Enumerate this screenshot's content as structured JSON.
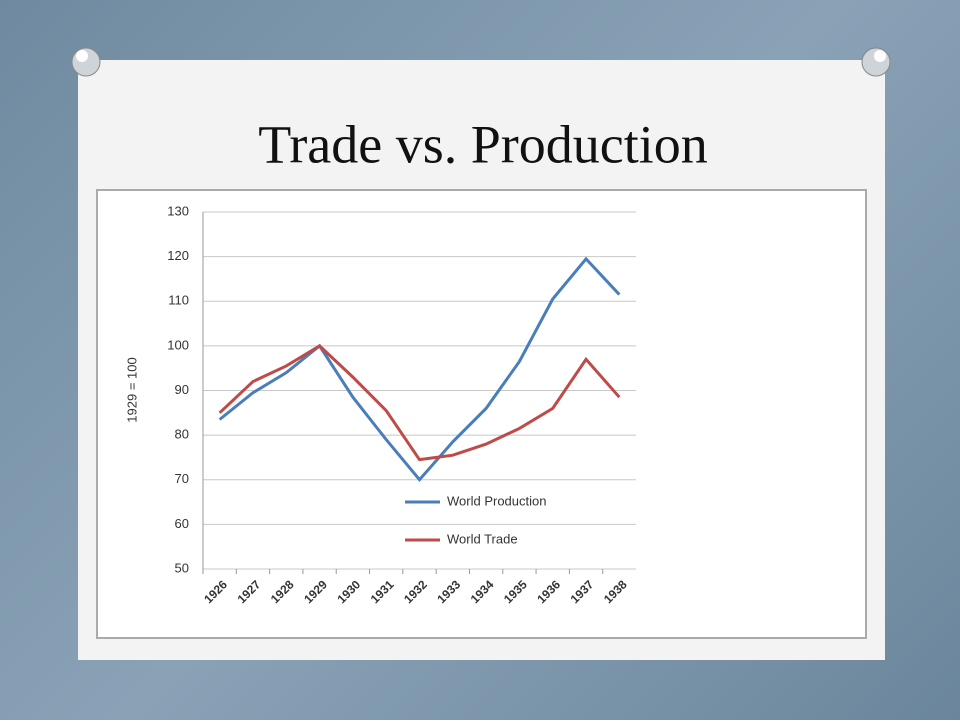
{
  "chart_data": {
    "type": "line",
    "title": "Trade vs. Production",
    "y_label": "1929 = 100",
    "categories": [
      "1926",
      "1927",
      "1928",
      "1929",
      "1930",
      "1931",
      "1932",
      "1933",
      "1934",
      "1935",
      "1936",
      "1937",
      "1938"
    ],
    "series": [
      {
        "name": "World Production",
        "color": "#4a7ebb",
        "values": [
          83.5,
          89.5,
          94,
          100,
          88.5,
          79,
          70,
          78.5,
          86,
          96.5,
          110.5,
          119.5,
          111.5
        ]
      },
      {
        "name": "World Trade",
        "color": "#be4b48",
        "values": [
          85,
          92,
          95.5,
          100,
          93,
          85.5,
          74.5,
          75.5,
          78,
          81.5,
          86,
          97,
          88.5
        ]
      }
    ],
    "ylim": [
      50,
      130
    ],
    "yticks": [
      50,
      60,
      70,
      80,
      90,
      100,
      110,
      120,
      130
    ],
    "grid": true
  }
}
